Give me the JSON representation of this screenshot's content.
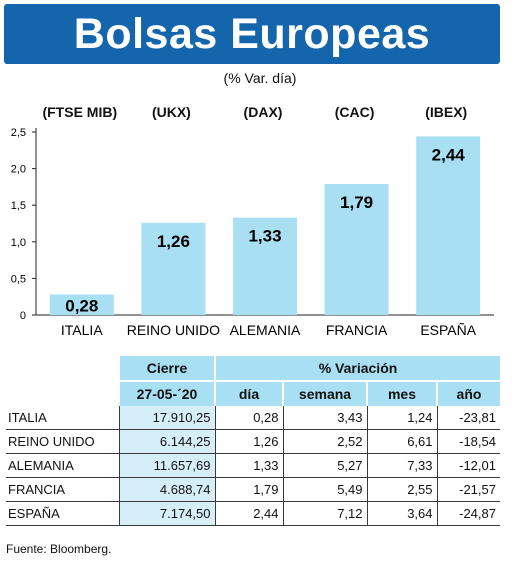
{
  "title": "Bolsas Europeas",
  "subtitle": "(% Var. día)",
  "source": "Fuente: Bloomberg.",
  "colors": {
    "banner": "#1565ad",
    "bar": "#a9dff3",
    "table_header": "#a9dff3"
  },
  "chart_data": {
    "type": "bar",
    "categories": [
      "ITALIA",
      "REINO UNIDO",
      "ALEMANIA",
      "FRANCIA",
      "ESPAÑA"
    ],
    "index_codes": [
      "(FTSE MIB)",
      "(UKX)",
      "(DAX)",
      "(CAC)",
      "(IBEX)"
    ],
    "values": [
      0.28,
      1.26,
      1.33,
      1.79,
      2.44
    ],
    "value_labels": [
      "0,28",
      "1,26",
      "1,33",
      "1,79",
      "2,44"
    ],
    "y_ticks": [
      "0",
      "0,5",
      "1,0",
      "1,5",
      "2,0",
      "2,5"
    ],
    "ylim": [
      0,
      2.5
    ],
    "grid": false,
    "legend": "none"
  },
  "table": {
    "group_headers": {
      "close": "Cierre",
      "variation": "% Variación"
    },
    "close_date": "27-05-´20",
    "columns": [
      "día",
      "semana",
      "mes",
      "año"
    ],
    "rows": [
      {
        "name": "ITALIA",
        "close": "17.910,25",
        "dia": "0,28",
        "semana": "3,43",
        "mes": "1,24",
        "ano": "-23,81"
      },
      {
        "name": "REINO UNIDO",
        "close": "6.144,25",
        "dia": "1,26",
        "semana": "2,52",
        "mes": "6,61",
        "ano": "-18,54"
      },
      {
        "name": "ALEMANIA",
        "close": "11.657,69",
        "dia": "1,33",
        "semana": "5,27",
        "mes": "7,33",
        "ano": "-12,01"
      },
      {
        "name": "FRANCIA",
        "close": "4.688,74",
        "dia": "1,79",
        "semana": "5,49",
        "mes": "2,55",
        "ano": "-21,57"
      },
      {
        "name": "ESPAÑA",
        "close": "7.174,50",
        "dia": "2,44",
        "semana": "7,12",
        "mes": "3,64",
        "ano": "-24,87"
      }
    ]
  }
}
